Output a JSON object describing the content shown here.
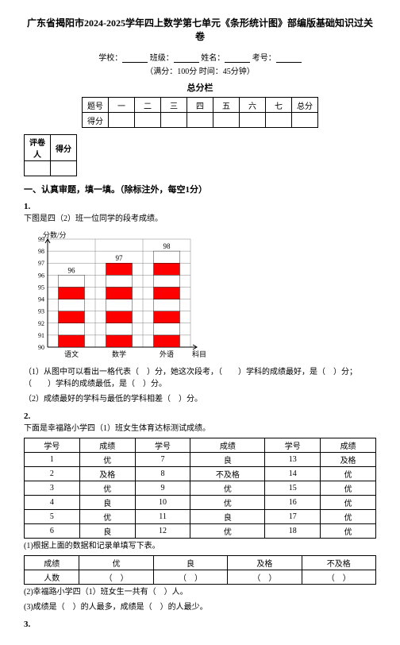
{
  "title": "广东省揭阳市2024-2025学年四上数学第七单元《条形统计图》部编版基础知识过关卷",
  "info": {
    "school_label": "学校：",
    "class_label": "班级：",
    "name_label": "姓名：",
    "exam_no_label": "考号：",
    "full_line": "（满分：100分 时间：45分钟）"
  },
  "score_header": "总分栏",
  "score_table": {
    "row1": [
      "题号",
      "一",
      "二",
      "三",
      "四",
      "五",
      "六",
      "七",
      "总分"
    ],
    "row2_label": "得分"
  },
  "grader_table": {
    "c1": "评卷人",
    "c2": "得分"
  },
  "section1": "一、认真审题，填一填。（除标注外，每空1分）",
  "q1": {
    "num": "1.",
    "intro": "下图是四（2）班一位同学的段考成绩。",
    "chart": {
      "type": "bar",
      "y_label": "分数/分",
      "x_label": "科目",
      "categories": [
        "语文",
        "数学",
        "外语"
      ],
      "values": [
        96,
        97,
        98
      ],
      "value_labels": [
        "96",
        "97",
        "98"
      ],
      "y_ticks": [
        90,
        91,
        92,
        93,
        94,
        95,
        96,
        97,
        98,
        99
      ],
      "ylim": [
        90,
        99
      ],
      "bar_fill": "#ff0000",
      "bar_fill_alt": "#ffffff",
      "stripe_height": 1,
      "bar_width_ratio": 0.55,
      "grid_color": "#808080",
      "axis_color": "#000000",
      "background": "#ffffff",
      "label_fontsize": 9,
      "tick_fontsize": 8
    },
    "line1": "（1）从图中可以看出一格代表（　）分，她这次段考，（　　）学科的成绩最好，是（　）分；（　　）学科的成绩最低，是（　）分。",
    "line2": "（2）成绩最好的学科与最低的学科相差（　）分。"
  },
  "q2": {
    "num": "2.",
    "intro": "下面是幸福路小学四（1）班女生体育达标测试成绩。",
    "table1": {
      "headers": [
        "学号",
        "成绩",
        "学号",
        "成绩",
        "学号",
        "成绩"
      ],
      "rows": [
        [
          "1",
          "优",
          "7",
          "良",
          "13",
          "及格"
        ],
        [
          "2",
          "及格",
          "8",
          "不及格",
          "14",
          "优"
        ],
        [
          "3",
          "优",
          "9",
          "优",
          "15",
          "优"
        ],
        [
          "4",
          "良",
          "10",
          "优",
          "16",
          "优"
        ],
        [
          "5",
          "优",
          "11",
          "良",
          "17",
          "优"
        ],
        [
          "6",
          "良",
          "12",
          "优",
          "18",
          "优"
        ]
      ]
    },
    "line_t1": "(1)根据上面的数据和记录单填写下表。",
    "table2": {
      "row1": [
        "成绩",
        "优",
        "良",
        "及格",
        "不及格"
      ],
      "row2": [
        "人数",
        "（　）",
        "（　）",
        "（　）",
        "（　）"
      ]
    },
    "line_t2": "(2)幸福路小学四（1）班女生一共有（　）人。",
    "line_t3": "(3)成绩是（　）的人最多，成绩是（　）的人最少。"
  },
  "q3": {
    "num": "3."
  }
}
